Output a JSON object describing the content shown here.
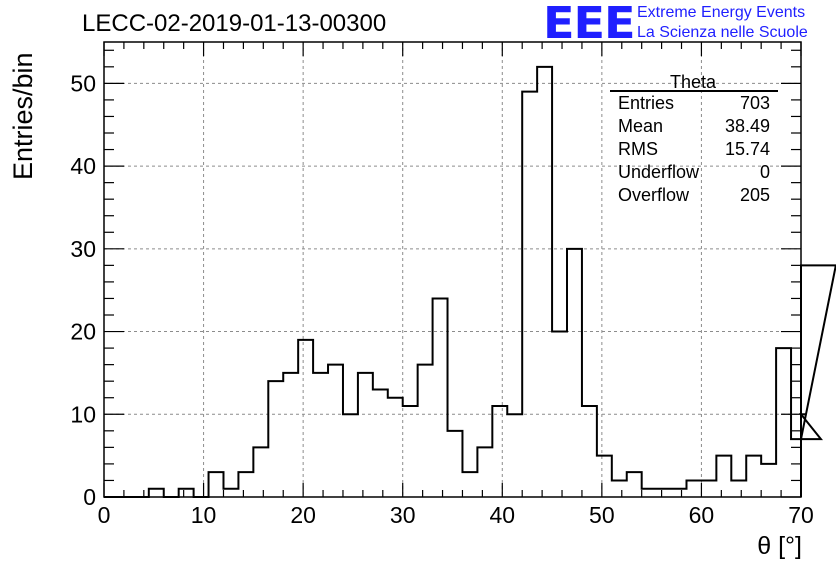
{
  "title": "LECC-02-2019-01-13-00300",
  "logo": {
    "mark": "EEE",
    "line1": "Extreme Energy Events",
    "line2": "La Scienza nelle Scuole",
    "color": "#1f1fff"
  },
  "stats": {
    "title": "Theta",
    "rows": [
      {
        "label": "Entries",
        "value": "703"
      },
      {
        "label": "Mean",
        "value": "38.49"
      },
      {
        "label": "RMS",
        "value": "15.74"
      },
      {
        "label": "Underflow",
        "value": "0"
      },
      {
        "label": "Overflow",
        "value": "205"
      }
    ]
  },
  "chart_data": {
    "type": "bar",
    "histogram": true,
    "title": "LECC-02-2019-01-13-00300",
    "xlabel": "θ [°]",
    "ylabel": "Entries/bin",
    "xlim": [
      0,
      70
    ],
    "ylim": [
      0,
      55
    ],
    "bin_width": 1.5,
    "bin_start": 0,
    "values": [
      0,
      0,
      0,
      1,
      0,
      1,
      0,
      3,
      1,
      3,
      6,
      14,
      15,
      19,
      15,
      16,
      10,
      15,
      13,
      12,
      11,
      16,
      24,
      8,
      3,
      6,
      11,
      10,
      49,
      52,
      20,
      30,
      11,
      5,
      2,
      3,
      1,
      1,
      1,
      2,
      2,
      5,
      2,
      5,
      4,
      18,
      7,
      10,
      7,
      28
    ],
    "x_ticks": [
      0,
      10,
      20,
      30,
      40,
      50,
      60,
      70
    ],
    "y_ticks": [
      0,
      10,
      20,
      30,
      40,
      50
    ],
    "grid": true,
    "line_color": "#000000"
  }
}
